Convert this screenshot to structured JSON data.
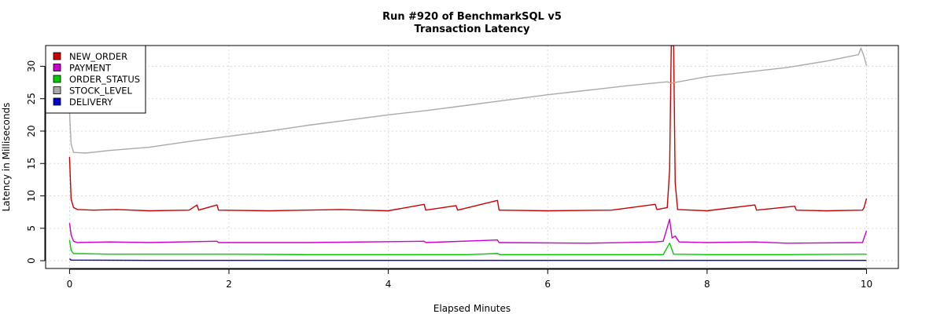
{
  "chart_data": {
    "type": "line",
    "title_line1": "Run #920 of BenchmarkSQL v5",
    "title_line2": "Transaction Latency",
    "xlabel": "Elapsed Minutes",
    "ylabel": "Latency in Milliseconds",
    "xlim": [
      -0.3,
      10.4
    ],
    "ylim": [
      -1.2,
      33.2
    ],
    "xticks": [
      0,
      2,
      4,
      6,
      8,
      10
    ],
    "xtick_labels": [
      "0",
      "2",
      "4",
      "6",
      "8",
      "10"
    ],
    "yticks": [
      0,
      5,
      10,
      15,
      20,
      25,
      30
    ],
    "ytick_labels": [
      "0",
      "5",
      "10",
      "15",
      "20",
      "25",
      "30"
    ],
    "grid": true,
    "legend_position": "top-left",
    "series": [
      {
        "name": "NEW_ORDER",
        "color": "#cc0000",
        "points": [
          [
            0,
            16
          ],
          [
            0.02,
            9.5
          ],
          [
            0.05,
            8.2
          ],
          [
            0.1,
            7.9
          ],
          [
            0.3,
            7.8
          ],
          [
            0.6,
            7.9
          ],
          [
            1.0,
            7.7
          ],
          [
            1.5,
            7.8
          ],
          [
            1.6,
            8.6
          ],
          [
            1.62,
            7.8
          ],
          [
            1.85,
            8.6
          ],
          [
            1.87,
            7.8
          ],
          [
            2.5,
            7.7
          ],
          [
            3.4,
            7.9
          ],
          [
            4.0,
            7.7
          ],
          [
            4.45,
            8.7
          ],
          [
            4.47,
            7.8
          ],
          [
            4.85,
            8.5
          ],
          [
            4.87,
            7.8
          ],
          [
            5.37,
            9.3
          ],
          [
            5.39,
            7.8
          ],
          [
            6.0,
            7.7
          ],
          [
            6.8,
            7.8
          ],
          [
            7.35,
            8.7
          ],
          [
            7.37,
            7.9
          ],
          [
            7.5,
            8.2
          ],
          [
            7.53,
            14
          ],
          [
            7.55,
            33.2
          ],
          [
            7.58,
            33.2
          ],
          [
            7.6,
            12
          ],
          [
            7.63,
            7.9
          ],
          [
            8.0,
            7.7
          ],
          [
            8.6,
            8.6
          ],
          [
            8.62,
            7.8
          ],
          [
            9.1,
            8.4
          ],
          [
            9.12,
            7.8
          ],
          [
            9.5,
            7.7
          ],
          [
            9.95,
            7.8
          ],
          [
            9.97,
            8.2
          ],
          [
            10.0,
            9.6
          ]
        ]
      },
      {
        "name": "PAYMENT",
        "color": "#cc00cc",
        "points": [
          [
            0,
            5.8
          ],
          [
            0.02,
            4.0
          ],
          [
            0.05,
            3.0
          ],
          [
            0.1,
            2.8
          ],
          [
            0.5,
            2.9
          ],
          [
            1.0,
            2.8
          ],
          [
            1.85,
            3.0
          ],
          [
            1.87,
            2.8
          ],
          [
            3.0,
            2.8
          ],
          [
            4.45,
            3.0
          ],
          [
            4.47,
            2.8
          ],
          [
            5.37,
            3.2
          ],
          [
            5.39,
            2.8
          ],
          [
            6.5,
            2.7
          ],
          [
            7.35,
            2.9
          ],
          [
            7.45,
            3.0
          ],
          [
            7.53,
            6.4
          ],
          [
            7.56,
            3.5
          ],
          [
            7.6,
            3.8
          ],
          [
            7.65,
            2.9
          ],
          [
            8.0,
            2.8
          ],
          [
            8.6,
            2.9
          ],
          [
            9.0,
            2.7
          ],
          [
            9.95,
            2.8
          ],
          [
            10.0,
            4.6
          ]
        ]
      },
      {
        "name": "ORDER_STATUS",
        "color": "#00cc00",
        "points": [
          [
            0,
            3.2
          ],
          [
            0.02,
            1.6
          ],
          [
            0.05,
            1.1
          ],
          [
            0.5,
            1.0
          ],
          [
            1.0,
            1.0
          ],
          [
            2.0,
            1.0
          ],
          [
            3.0,
            0.95
          ],
          [
            4.0,
            0.95
          ],
          [
            5.0,
            0.95
          ],
          [
            5.37,
            1.1
          ],
          [
            5.4,
            0.95
          ],
          [
            6.5,
            0.95
          ],
          [
            7.45,
            0.95
          ],
          [
            7.53,
            2.7
          ],
          [
            7.58,
            1.0
          ],
          [
            8.0,
            0.95
          ],
          [
            9.0,
            0.95
          ],
          [
            10.0,
            1.0
          ]
        ]
      },
      {
        "name": "STOCK_LEVEL",
        "color": "#aaaaaa",
        "points": [
          [
            0,
            23
          ],
          [
            0.02,
            18
          ],
          [
            0.05,
            16.7
          ],
          [
            0.2,
            16.6
          ],
          [
            0.5,
            17.0
          ],
          [
            1.0,
            17.5
          ],
          [
            1.5,
            18.4
          ],
          [
            2.0,
            19.2
          ],
          [
            2.5,
            20.0
          ],
          [
            3.0,
            20.9
          ],
          [
            3.5,
            21.7
          ],
          [
            4.0,
            22.5
          ],
          [
            4.5,
            23.2
          ],
          [
            5.0,
            24.0
          ],
          [
            5.5,
            24.8
          ],
          [
            6.0,
            25.6
          ],
          [
            6.5,
            26.3
          ],
          [
            7.0,
            27.0
          ],
          [
            7.5,
            27.6
          ],
          [
            7.55,
            27.4
          ],
          [
            8.0,
            28.4
          ],
          [
            8.5,
            29.1
          ],
          [
            9.0,
            29.8
          ],
          [
            9.5,
            30.8
          ],
          [
            9.9,
            31.8
          ],
          [
            9.93,
            32.8
          ],
          [
            9.97,
            31.5
          ],
          [
            10.0,
            30.1
          ]
        ]
      },
      {
        "name": "DELIVERY",
        "color": "#0000cc",
        "points": [
          [
            0,
            0.3
          ],
          [
            0.02,
            0.1
          ],
          [
            1.0,
            0.05
          ],
          [
            5.0,
            0.05
          ],
          [
            10.0,
            0.05
          ]
        ]
      }
    ]
  }
}
